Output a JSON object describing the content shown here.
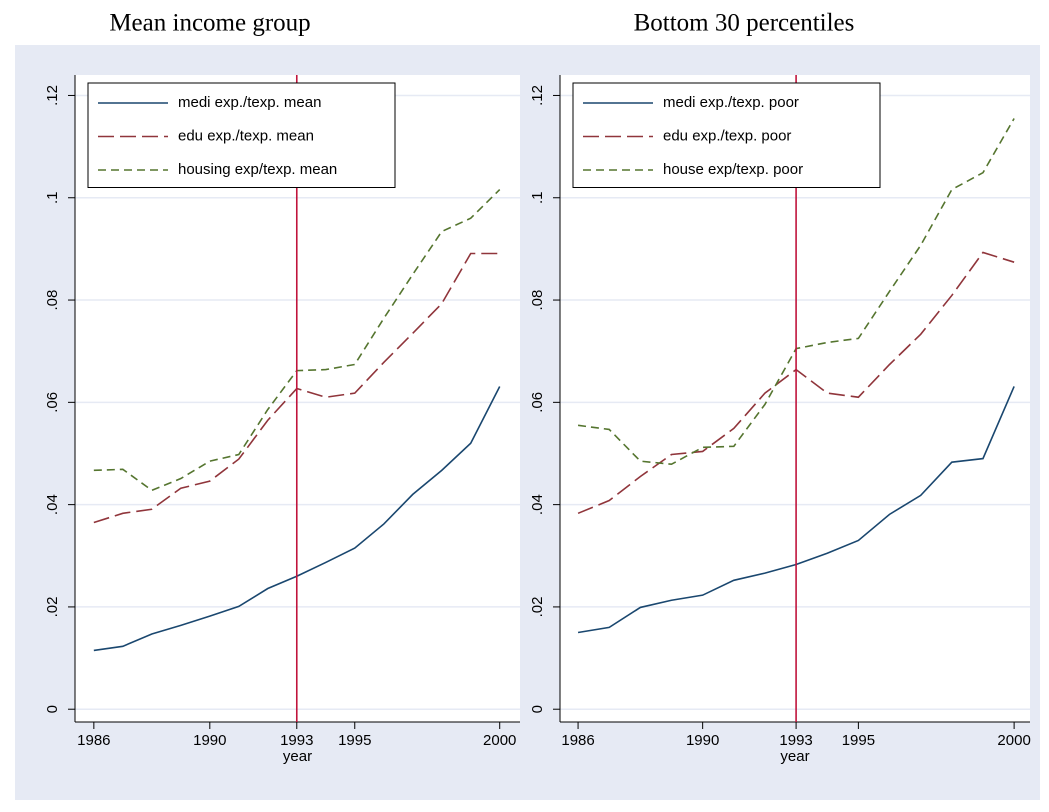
{
  "chart_data": [
    {
      "type": "line",
      "title": "Mean income group",
      "xlabel": "year",
      "x": [
        1986,
        1987,
        1988,
        1989,
        1990,
        1991,
        1992,
        1993,
        1994,
        1995,
        1996,
        1997,
        1998,
        1999,
        2000
      ],
      "series": [
        {
          "name": "medi exp./texp. mean",
          "color": "#1a476f",
          "dash": "solid",
          "values": [
            0.0115,
            0.0123,
            0.0147,
            0.0164,
            0.0182,
            0.0201,
            0.0236,
            0.026,
            0.0287,
            0.0315,
            0.0362,
            0.042,
            0.0467,
            0.052,
            0.0631
          ]
        },
        {
          "name": "edu exp./texp. mean",
          "color": "#90353b",
          "dash": "longdash",
          "values": [
            0.0365,
            0.0383,
            0.0391,
            0.0432,
            0.0446,
            0.0489,
            0.0565,
            0.0627,
            0.061,
            0.0618,
            0.0678,
            0.0735,
            0.0793,
            0.0891,
            0.0891
          ]
        },
        {
          "name": "housing exp/texp. mean",
          "color": "#55752f",
          "dash": "dash",
          "values": [
            0.0467,
            0.0469,
            0.0428,
            0.0451,
            0.0485,
            0.0498,
            0.0586,
            0.0662,
            0.0664,
            0.0674,
            0.0764,
            0.085,
            0.0934,
            0.096,
            0.1016
          ]
        }
      ],
      "xlim": [
        1985.35,
        2000.7
      ],
      "ylim": [
        -0.0025,
        0.124
      ],
      "xticks": [
        1986,
        1990,
        1993,
        1995,
        2000
      ],
      "yticks": [
        0,
        {
          "value": 0.02,
          "label": ".02"
        },
        {
          "value": 0.04,
          "label": ".04"
        },
        {
          "value": 0.06,
          "label": ".06"
        },
        {
          "value": 0.08,
          "label": ".08"
        },
        {
          "value": 0.1,
          "label": ".1"
        },
        {
          "value": 0.12,
          "label": ".12"
        }
      ],
      "grid": true,
      "legend": "top-left",
      "reference_x": 1993,
      "reference_color": "#c0143c"
    },
    {
      "type": "line",
      "title": "Bottom 30 percentiles",
      "xlabel": "year",
      "x": [
        1986,
        1987,
        1988,
        1989,
        1990,
        1991,
        1992,
        1993,
        1994,
        1995,
        1996,
        1997,
        1998,
        1999,
        2000
      ],
      "series": [
        {
          "name": "medi exp./texp. poor",
          "color": "#1a476f",
          "dash": "solid",
          "values": [
            0.015,
            0.016,
            0.0199,
            0.0213,
            0.0223,
            0.0252,
            0.0266,
            0.0283,
            0.0305,
            0.033,
            0.0381,
            0.0418,
            0.0483,
            0.049,
            0.0631
          ]
        },
        {
          "name": "edu exp./texp. poor",
          "color": "#90353b",
          "dash": "longdash",
          "values": [
            0.0383,
            0.0408,
            0.0455,
            0.0498,
            0.0504,
            0.0549,
            0.0618,
            0.0664,
            0.0618,
            0.061,
            0.0674,
            0.0733,
            0.0809,
            0.0893,
            0.0874
          ]
        },
        {
          "name": "house exp/texp. poor",
          "color": "#55752f",
          "dash": "dash",
          "values": [
            0.0555,
            0.0547,
            0.0485,
            0.0479,
            0.0512,
            0.0514,
            0.0596,
            0.0705,
            0.0717,
            0.0725,
            0.0817,
            0.0907,
            0.1016,
            0.1049,
            0.1155
          ]
        }
      ],
      "xlim": [
        1985.42,
        2000.51
      ],
      "ylim": [
        -0.0025,
        0.124
      ],
      "xticks": [
        1986,
        1990,
        1993,
        1995,
        2000
      ],
      "yticks": [
        0,
        {
          "value": 0.02,
          "label": ".02"
        },
        {
          "value": 0.04,
          "label": ".04"
        },
        {
          "value": 0.06,
          "label": ".06"
        },
        {
          "value": 0.08,
          "label": ".08"
        },
        {
          "value": 0.1,
          "label": ".1"
        },
        {
          "value": 0.12,
          "label": ".12"
        }
      ],
      "grid": true,
      "legend": "top-left",
      "reference_x": 1993,
      "reference_color": "#c0143c"
    }
  ]
}
